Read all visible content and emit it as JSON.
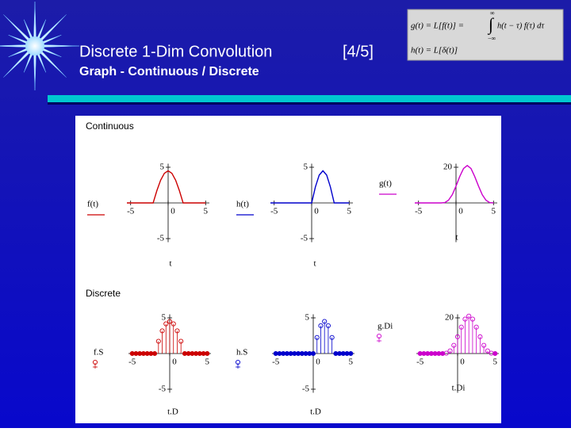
{
  "header": {
    "title": "Discrete 1-Dim Convolution",
    "page": "[4/5]",
    "subtitle": "Graph - Continuous / Discrete"
  },
  "formula": {
    "lhs": "g(t) = L[f(t)] =",
    "integral": "∫",
    "upper": "∞",
    "lower": "−∞",
    "integrand": "h(t − τ) f(τ) dτ",
    "line2": "h(t) = L[δ(t)]"
  },
  "panels": [
    {
      "label": "Continuous",
      "type": "line",
      "x": [
        -5.5,
        -5,
        -4.5,
        -4,
        -3.5,
        -3,
        -2.5,
        -2,
        -1.5,
        -1,
        -0.5,
        0,
        0.5,
        1,
        1.5,
        2,
        2.5,
        3,
        3.5,
        4,
        4.5,
        5
      ],
      "plots": [
        {
          "legend": "f(t)",
          "xlabel": "t",
          "color": "#cc0000",
          "xlim": [
            -5.5,
            5.5
          ],
          "ylim": [
            -5.5,
            5.5
          ],
          "xticks": [
            -5,
            0,
            5
          ],
          "yticks": [
            -5,
            5
          ],
          "values": [
            0,
            0,
            0,
            0,
            0,
            0,
            0,
            0,
            1.72,
            3.18,
            4.16,
            4.5,
            4.16,
            3.18,
            1.72,
            0,
            0,
            0,
            0,
            0,
            0,
            0
          ]
        },
        {
          "legend": "h(t)",
          "xlabel": "t",
          "color": "#0000cc",
          "xlim": [
            -5.5,
            5.5
          ],
          "ylim": [
            -5.5,
            5.5
          ],
          "xticks": [
            -5,
            0,
            5
          ],
          "yticks": [
            -5,
            5
          ],
          "values": [
            0,
            0,
            0,
            0,
            0,
            0,
            0,
            0,
            0,
            0,
            0,
            0,
            2.25,
            3.9,
            4.5,
            3.9,
            2.25,
            0,
            0,
            0,
            0,
            0
          ]
        },
        {
          "legend": "g(t)",
          "xlabel": "t",
          "color": "#cc00cc",
          "xlim": [
            -5.5,
            5.5
          ],
          "ylim": [
            -22,
            22
          ],
          "xticks": [
            -5,
            0,
            5
          ],
          "yticks": [
            20
          ],
          "values": [
            0,
            0,
            0,
            0,
            0,
            0,
            0,
            0,
            0.2,
            1.5,
            4.6,
            9.4,
            14.8,
            19.3,
            21,
            19.3,
            14.8,
            9.4,
            4.6,
            1.5,
            0.2,
            0
          ]
        }
      ]
    },
    {
      "label": "Discrete",
      "type": "stem",
      "x": [
        -5,
        -4.5,
        -4,
        -3.5,
        -3,
        -2.5,
        -2,
        -1.5,
        -1,
        -0.5,
        0,
        0.5,
        1,
        1.5,
        2,
        2.5,
        3,
        3.5,
        4,
        4.5,
        5
      ],
      "plots": [
        {
          "legend": "f.S",
          "xlabel": "t.D",
          "color": "#cc0000",
          "xlim": [
            -5.5,
            5.5
          ],
          "ylim": [
            -5.5,
            5.5
          ],
          "xticks": [
            -5,
            0,
            5
          ],
          "yticks": [
            -5,
            5
          ],
          "values": [
            0,
            0,
            0,
            0,
            0,
            0,
            0,
            1.72,
            3.18,
            4.16,
            4.5,
            4.16,
            3.18,
            1.72,
            0,
            0,
            0,
            0,
            0,
            0,
            0
          ]
        },
        {
          "legend": "h.S",
          "xlabel": "t.D",
          "color": "#0000cc",
          "xlim": [
            -5.5,
            5.5
          ],
          "ylim": [
            -5.5,
            5.5
          ],
          "xticks": [
            -5,
            0,
            5
          ],
          "yticks": [
            -5,
            5
          ],
          "values": [
            0,
            0,
            0,
            0,
            0,
            0,
            0,
            0,
            0,
            0,
            0,
            2.25,
            3.9,
            4.5,
            3.9,
            2.25,
            0,
            0,
            0,
            0,
            0
          ]
        },
        {
          "legend": "g.Di",
          "xlabel": "t.Di",
          "color": "#cc00cc",
          "xlim": [
            -5.5,
            5.5
          ],
          "ylim": [
            -22,
            22
          ],
          "xticks": [
            -5,
            0,
            5
          ],
          "yticks": [
            20
          ],
          "values": [
            0,
            0,
            0,
            0,
            0,
            0,
            0,
            0.2,
            1.5,
            4.6,
            9.4,
            14.8,
            19.3,
            21,
            19.3,
            14.8,
            9.4,
            4.6,
            1.5,
            0.2,
            0
          ]
        }
      ]
    }
  ]
}
